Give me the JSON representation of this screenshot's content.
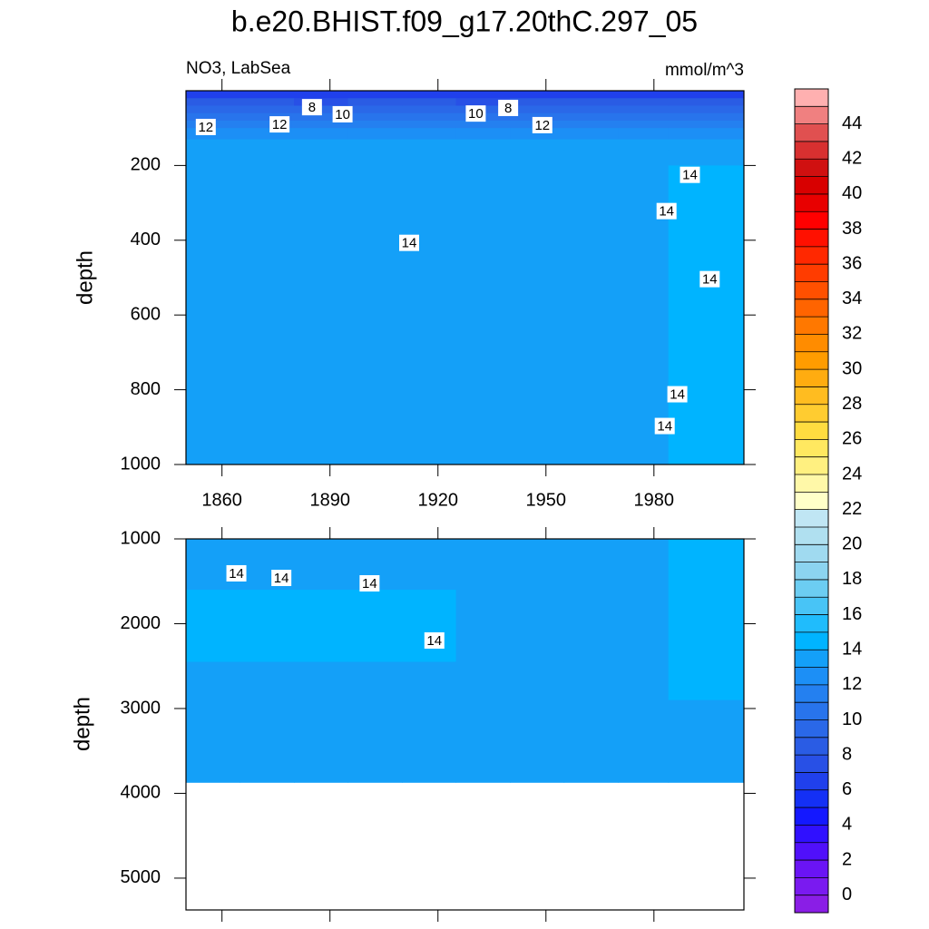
{
  "chart_data": [
    {
      "type": "contour",
      "title": "b.e20.BHIST.f09_g17.20thC.297_05",
      "left_label": "NO3, LabSea",
      "right_label": "mmol/m^3",
      "y_label": "depth",
      "xlim": [
        1850,
        2005
      ],
      "ylim": [
        0,
        1000
      ],
      "xticks": [
        1860,
        1890,
        1920,
        1950,
        1980
      ],
      "yticks": [
        200,
        400,
        600,
        800,
        1000
      ],
      "x_edges": [
        1850,
        1865,
        1880,
        1895,
        1910,
        1925,
        1940,
        1955,
        1970,
        1984,
        2005
      ],
      "y_edges": [
        0,
        20,
        40,
        60,
        80,
        100,
        130,
        160,
        200,
        1000
      ],
      "z": [
        [
          6.5,
          6.2,
          6.4,
          6.6,
          6.3,
          6.5,
          6.2,
          6.4,
          6.6,
          6.5
        ],
        [
          8.2,
          8.0,
          7.8,
          8.3,
          8.1,
          7.9,
          8.2,
          8.4,
          8.1,
          8.3
        ],
        [
          9.6,
          9.4,
          9.2,
          9.7,
          9.5,
          9.3,
          9.6,
          9.8,
          9.5,
          9.7
        ],
        [
          10.6,
          10.4,
          10.2,
          10.7,
          10.5,
          10.3,
          10.6,
          10.8,
          10.5,
          10.7
        ],
        [
          11.5,
          11.4,
          11.2,
          11.6,
          11.5,
          11.3,
          11.6,
          11.7,
          11.5,
          11.6
        ],
        [
          12.4,
          12.3,
          12.2,
          12.5,
          12.4,
          12.3,
          12.5,
          12.6,
          12.4,
          12.5
        ],
        [
          13.2,
          13.1,
          13.0,
          13.3,
          13.2,
          13.1,
          13.3,
          13.4,
          13.2,
          13.3
        ],
        [
          13.6,
          13.6,
          13.6,
          13.6,
          13.6,
          13.6,
          13.6,
          13.6,
          13.6,
          13.8
        ],
        [
          13.7,
          13.7,
          13.7,
          13.7,
          13.7,
          13.7,
          13.7,
          13.7,
          13.7,
          14.2
        ]
      ],
      "contour_labels": [
        {
          "x": 1855.5,
          "y": 97,
          "value": 12
        },
        {
          "x": 1876,
          "y": 90,
          "value": 12
        },
        {
          "x": 1885,
          "y": 44,
          "value": 8
        },
        {
          "x": 1893.5,
          "y": 63,
          "value": 10
        },
        {
          "x": 1930.5,
          "y": 61,
          "value": 10
        },
        {
          "x": 1939.5,
          "y": 46,
          "value": 8
        },
        {
          "x": 1949,
          "y": 92,
          "value": 12
        },
        {
          "x": 1912,
          "y": 407,
          "value": 14
        },
        {
          "x": 1990,
          "y": 225,
          "value": 14
        },
        {
          "x": 1983.5,
          "y": 322,
          "value": 14
        },
        {
          "x": 1995.5,
          "y": 504,
          "value": 14
        },
        {
          "x": 1986.5,
          "y": 812,
          "value": 14
        },
        {
          "x": 1983,
          "y": 897,
          "value": 14
        }
      ],
      "colorbar": {
        "levels": [
          0,
          1,
          2,
          3,
          4,
          5,
          6,
          7,
          8,
          9,
          10,
          11,
          12,
          13,
          14,
          15,
          16,
          17,
          18,
          19,
          20,
          21,
          22,
          23,
          24,
          25,
          26,
          27,
          28,
          29,
          30,
          31,
          32,
          33,
          34,
          35,
          36,
          37,
          38,
          39,
          40,
          41,
          42,
          43,
          44,
          45
        ],
        "ticks": [
          0,
          2,
          4,
          6,
          8,
          10,
          12,
          14,
          16,
          18,
          20,
          22,
          24,
          26,
          28,
          30,
          32,
          34,
          36,
          38,
          40,
          42,
          44
        ],
        "colors": [
          "#8a1ee6",
          "#7a1af0",
          "#6a14f5",
          "#5010fa",
          "#3010ff",
          "#1418ff",
          "#1430f5",
          "#2040ec",
          "#2850e6",
          "#2a5ce4",
          "#2a68e8",
          "#2874ec",
          "#2480f0",
          "#1c8ff6",
          "#14a0f8",
          "#00b4ff",
          "#20bcfc",
          "#48c4f6",
          "#6ccdf2",
          "#8cd4f0",
          "#a0daf0",
          "#b0e0f0",
          "#c0e6f4",
          "#ffffc8",
          "#fff8a8",
          "#fff080",
          "#ffe860",
          "#ffdc40",
          "#ffcc30",
          "#ffbc20",
          "#ffac10",
          "#ff9c00",
          "#ff8c00",
          "#ff7800",
          "#ff6400",
          "#ff5000",
          "#ff3c00",
          "#ff2800",
          "#ff1000",
          "#ff0000",
          "#e80000",
          "#d80000",
          "#d01010",
          "#d83030",
          "#e05050",
          "#f08080",
          "#ffb0b0"
        ]
      }
    },
    {
      "type": "contour",
      "y_label": "depth",
      "xlim": [
        1850,
        2005
      ],
      "ylim": [
        1000,
        5375
      ],
      "xticks": [
        1860,
        1890,
        1920,
        1950,
        1980
      ],
      "yticks": [
        1000,
        2000,
        3000,
        4000,
        5000
      ],
      "x_edges": [
        1850,
        1865,
        1880,
        1895,
        1910,
        1925,
        1940,
        1955,
        1970,
        1984,
        2005
      ],
      "y_edges": [
        1000,
        1600,
        2450,
        2900,
        3870,
        5375
      ],
      "z": [
        [
          13.8,
          13.8,
          13.8,
          13.8,
          13.8,
          13.8,
          13.8,
          13.8,
          13.8,
          14.2
        ],
        [
          14.1,
          14.2,
          14.1,
          14.1,
          14.2,
          13.9,
          13.8,
          13.8,
          13.8,
          14.2
        ],
        [
          13.8,
          13.8,
          13.8,
          13.8,
          13.8,
          13.8,
          13.8,
          13.8,
          13.8,
          14.1
        ],
        [
          13.7,
          13.7,
          13.7,
          13.7,
          13.7,
          13.7,
          13.7,
          13.7,
          13.7,
          13.7
        ],
        [
          null,
          null,
          null,
          null,
          null,
          null,
          null,
          null,
          null,
          null
        ]
      ],
      "contour_labels": [
        {
          "x": 1864,
          "y": 1406,
          "value": 14
        },
        {
          "x": 1876.5,
          "y": 1460,
          "value": 14
        },
        {
          "x": 1901,
          "y": 1524,
          "value": 14
        },
        {
          "x": 1919,
          "y": 2198,
          "value": 14
        }
      ]
    }
  ]
}
